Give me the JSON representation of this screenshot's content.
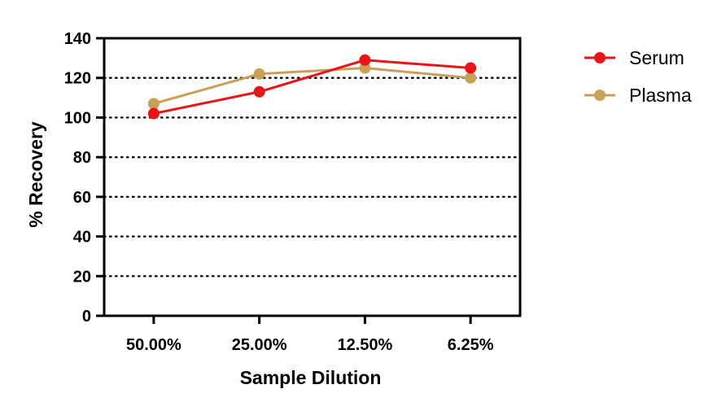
{
  "chart_data": {
    "type": "line",
    "xlabel": "Sample Dilution",
    "ylabel": "% Recovery",
    "categories": [
      "50.00%",
      "25.00%",
      "12.50%",
      "6.25%"
    ],
    "ylim": [
      0,
      140
    ],
    "yticks": [
      0,
      20,
      40,
      60,
      80,
      100,
      120,
      140
    ],
    "grid": "horizontal dotted",
    "legend_position": "right",
    "series": [
      {
        "name": "Serum",
        "color": "#e8141a",
        "values": [
          102,
          113,
          129,
          125
        ]
      },
      {
        "name": "Plasma",
        "color": "#c9a05a",
        "values": [
          107,
          122,
          125,
          120
        ]
      }
    ]
  }
}
